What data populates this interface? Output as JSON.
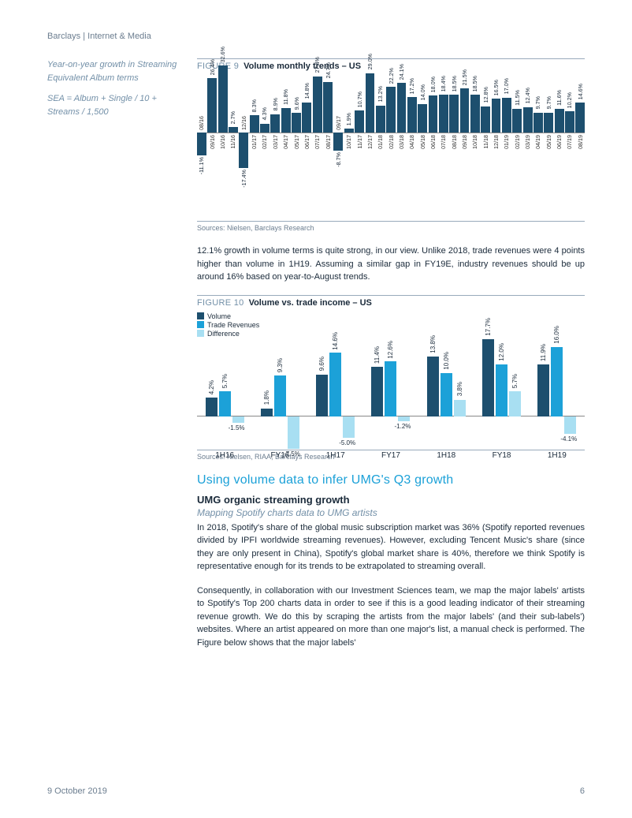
{
  "header": "Barclays | Internet & Media",
  "aside": {
    "line1": "Year-on-year growth in Streaming Equivalent Album terms",
    "line2": "SEA = Album + Single / 10 + Streams / 1,500"
  },
  "fig9": {
    "num": "FIGURE 9",
    "title": "Volume monthly trends – US",
    "sources": "Sources:  Nielsen, Barclays Research",
    "color": "#1d4f6e",
    "zero_pct": 60,
    "val_scale": 2.6,
    "data": [
      {
        "c": "08/16",
        "v": -11.1
      },
      {
        "c": "09/16",
        "v": 26.4
      },
      {
        "c": "10/16",
        "v": 32.6
      },
      {
        "c": "11/16",
        "v": 2.7
      },
      {
        "c": "12/16",
        "v": -17.4
      },
      {
        "c": "01/17",
        "v": 8.3
      },
      {
        "c": "02/17",
        "v": 4.3
      },
      {
        "c": "03/17",
        "v": 8.9
      },
      {
        "c": "04/17",
        "v": 11.8
      },
      {
        "c": "05/17",
        "v": 9.6
      },
      {
        "c": "06/17",
        "v": 14.8
      },
      {
        "c": "07/17",
        "v": 27.4
      },
      {
        "c": "08/17",
        "v": 24.7
      },
      {
        "c": "09/17",
        "v": -8.7
      },
      {
        "c": "10/17",
        "v": 1.9
      },
      {
        "c": "11/17",
        "v": 10.7
      },
      {
        "c": "12/17",
        "v": 29.0
      },
      {
        "c": "01/18",
        "v": 13.2
      },
      {
        "c": "02/18",
        "v": 22.2
      },
      {
        "c": "03/18",
        "v": 24.1
      },
      {
        "c": "04/18",
        "v": 17.2
      },
      {
        "c": "05/18",
        "v": 14.0
      },
      {
        "c": "06/18",
        "v": 18.0
      },
      {
        "c": "07/18",
        "v": 18.4
      },
      {
        "c": "08/18",
        "v": 18.5
      },
      {
        "c": "09/18",
        "v": 21.5
      },
      {
        "c": "10/18",
        "v": 18.5
      },
      {
        "c": "11/18",
        "v": 12.8
      },
      {
        "c": "12/18",
        "v": 16.5
      },
      {
        "c": "01/19",
        "v": 17.0
      },
      {
        "c": "02/19",
        "v": 11.5
      },
      {
        "c": "03/19",
        "v": 12.4
      },
      {
        "c": "04/19",
        "v": 9.7
      },
      {
        "c": "05/19",
        "v": 9.7
      },
      {
        "c": "06/19",
        "v": 11.6
      },
      {
        "c": "07/19",
        "v": 10.2
      },
      {
        "c": "08/19",
        "v": 14.6
      }
    ]
  },
  "para1": "12.1% growth in volume terms is quite strong, in our view. Unlike 2018, trade revenues were 4 points higher than volume in 1H19. Assuming a similar gap in FY19E, industry revenues should be up around 16% based on year-to-August trends.",
  "fig10": {
    "num": "FIGURE 10",
    "title": "Volume vs. trade income – US",
    "sources": "Sources:  Nielsen, RIAA, Barclays Research",
    "legend": [
      {
        "label": "Volume",
        "color": "#1d4f6e"
      },
      {
        "label": "Trade Revenues",
        "color": "#1ca1d8"
      },
      {
        "label": "Difference",
        "color": "#a8dff2"
      }
    ],
    "val_scale": 5.5,
    "groups": [
      {
        "c": "1H16",
        "vol": 4.2,
        "rev": 5.7,
        "diff": -1.5
      },
      {
        "c": "FY16",
        "vol": 1.8,
        "rev": 9.3,
        "diff": -7.5
      },
      {
        "c": "1H17",
        "vol": 9.6,
        "rev": 14.6,
        "diff": -5.0
      },
      {
        "c": "FY17",
        "vol": 11.4,
        "rev": 12.6,
        "diff": -1.2
      },
      {
        "c": "1H18",
        "vol": 13.8,
        "rev": 10.0,
        "diff": 3.8
      },
      {
        "c": "FY18",
        "vol": 17.7,
        "rev": 12.0,
        "diff": 5.7
      },
      {
        "c": "1H19",
        "vol": 11.9,
        "rev": 16.0,
        "diff": -4.1
      }
    ]
  },
  "section_heading": "Using volume data to infer UMG's Q3 growth",
  "sub_heading": "UMG organic streaming growth",
  "sub_sub": "Mapping Spotify charts data to UMG artists",
  "para2": "In 2018, Spotify's share of the global music subscription market was 36% (Spotify reported revenues divided by IPFI worldwide streaming revenues). However, excluding Tencent Music's share (since they are only present in China), Spotify's global market share is 40%, therefore we think Spotify is representative enough for its trends to be extrapolated to streaming overall.",
  "para3": "Consequently, in collaboration with our Investment Sciences team, we map the major labels' artists to Spotify's Top 200 charts data in order to see if this is a good leading indicator of their streaming revenue growth. We do this by scraping the artists from the major labels' (and their sub-labels') websites. Where an artist appeared on more than one major's list, a manual check is performed. The Figure below shows that the major labels'",
  "footer": {
    "date": "9 October 2019",
    "page": "6"
  }
}
